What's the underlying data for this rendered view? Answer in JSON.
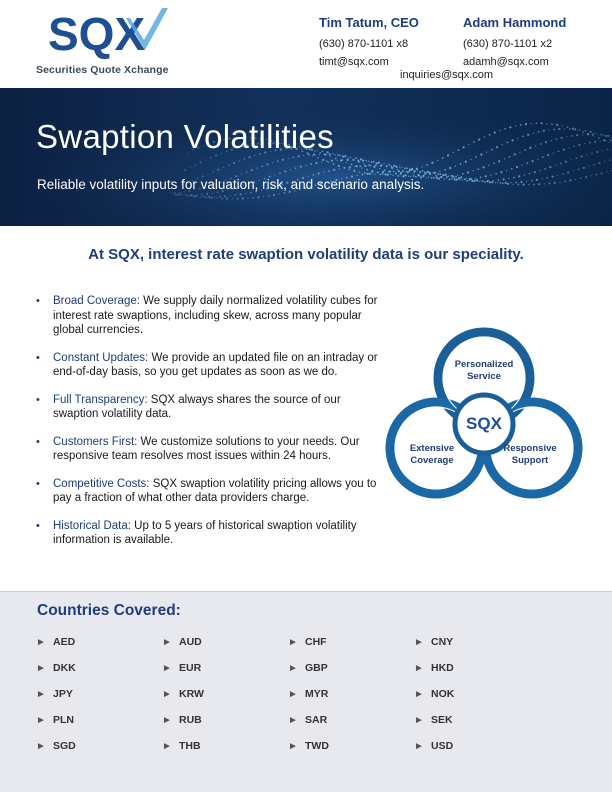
{
  "logo": {
    "text": "SQX",
    "tagline": "Securities Quote Xchange"
  },
  "contacts": [
    {
      "name": "Tim Tatum, CEO",
      "phone": "(630) 870-1101 x8",
      "email": "timt@sqx.com"
    },
    {
      "name": "Adam Hammond",
      "phone": "(630) 870-1101 x2",
      "email": "adamh@sqx.com"
    }
  ],
  "inquiries": "inquiries@sqx.com",
  "banner": {
    "title": "Swaption Volatilities",
    "subtitle": "Reliable volatility inputs for valuation, risk, and scenario analysis."
  },
  "tagline": "At SQX, interest rate swaption volatility data is our speciality.",
  "bullets": [
    {
      "label": "Broad Coverage:",
      "text": " We supply daily normalized volatility cubes for interest rate swaptions, including skew, across many popular global currencies."
    },
    {
      "label": "Constant Updates:",
      "text": " We provide an updated file on an intraday or end-of-day basis, so you get updates as soon as we do."
    },
    {
      "label": "Full Transparency:",
      "text": " SQX always shares the source of our swaption volatility data."
    },
    {
      "label": "Customers First:",
      "text": " We customize solutions to your needs. Our responsive team resolves most issues within 24 hours."
    },
    {
      "label": "Competitive Costs:",
      "text": " SQX swaption volatility pricing allows you to pay a fraction of what other data providers charge."
    },
    {
      "label": "Historical Data:",
      "text": " Up to 5 years of historical swaption volatility information is available."
    }
  ],
  "venn": {
    "top": [
      "Personalized",
      "Service"
    ],
    "left": [
      "Extensive",
      "Coverage"
    ],
    "right": [
      "Responsive",
      "Support"
    ],
    "center": "SQX"
  },
  "countries": {
    "title": "Countries Covered:",
    "arrow": "►",
    "columns": [
      [
        "AED",
        "DKK",
        "JPY",
        "PLN",
        "SGD"
      ],
      [
        "AUD",
        "EUR",
        "KRW",
        "RUB",
        "THB"
      ],
      [
        "CHF",
        "GBP",
        "MYR",
        "SAR",
        "TWD"
      ],
      [
        "CNY",
        "HKD",
        "NOK",
        "SEK",
        "USD"
      ]
    ]
  },
  "colors": {
    "brand_navy": "#1f3d7a",
    "venn_blue": "#1a5e96",
    "banner_dark": "#0c2142"
  }
}
